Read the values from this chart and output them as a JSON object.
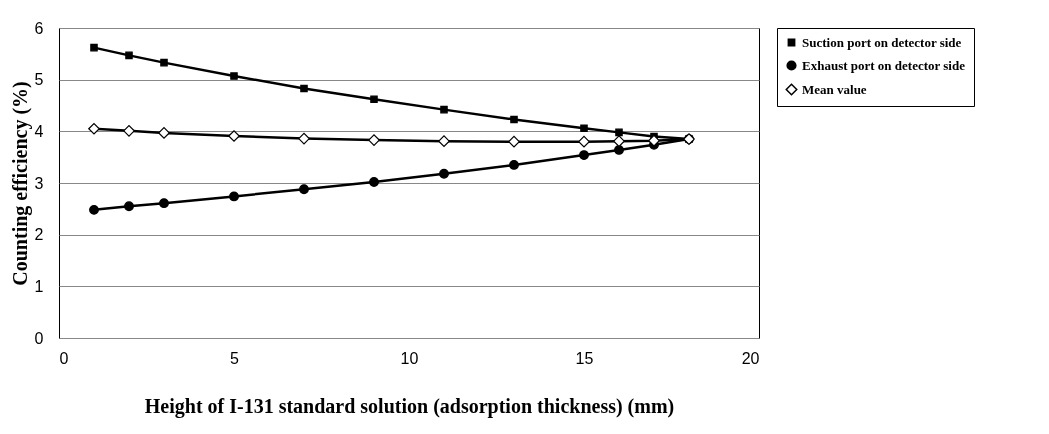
{
  "chart_data": {
    "type": "line",
    "xlabel": "Height of I-131 standard solution (adsorption thickness) (mm)",
    "ylabel": "Counting efficiency (%)",
    "x": [
      1,
      2,
      3,
      5,
      7,
      9,
      11,
      13,
      15,
      16,
      17,
      18
    ],
    "series": [
      {
        "name": "Suction port on detector side",
        "color": "#000000",
        "marker": "square",
        "values": [
          5.62,
          5.47,
          5.33,
          5.07,
          4.83,
          4.62,
          4.42,
          4.23,
          4.06,
          3.98,
          3.9,
          3.85
        ]
      },
      {
        "name": "Exhaust port on detector side",
        "color": "#000000",
        "marker": "circle",
        "values": [
          2.48,
          2.55,
          2.61,
          2.74,
          2.88,
          3.02,
          3.18,
          3.35,
          3.54,
          3.64,
          3.74,
          3.85
        ]
      },
      {
        "name": "Mean value",
        "color": "#000000",
        "marker": "diamond",
        "values": [
          4.05,
          4.01,
          3.97,
          3.91,
          3.86,
          3.83,
          3.81,
          3.8,
          3.8,
          3.81,
          3.82,
          3.85
        ]
      }
    ],
    "xlim": [
      0,
      20
    ],
    "xticks": [
      0,
      5,
      10,
      15,
      20
    ],
    "ylim": [
      0,
      6
    ],
    "yticks": [
      0,
      1,
      2,
      3,
      4,
      5,
      6
    ],
    "grid": "y",
    "legend": "right",
    "line_style": "solid"
  }
}
